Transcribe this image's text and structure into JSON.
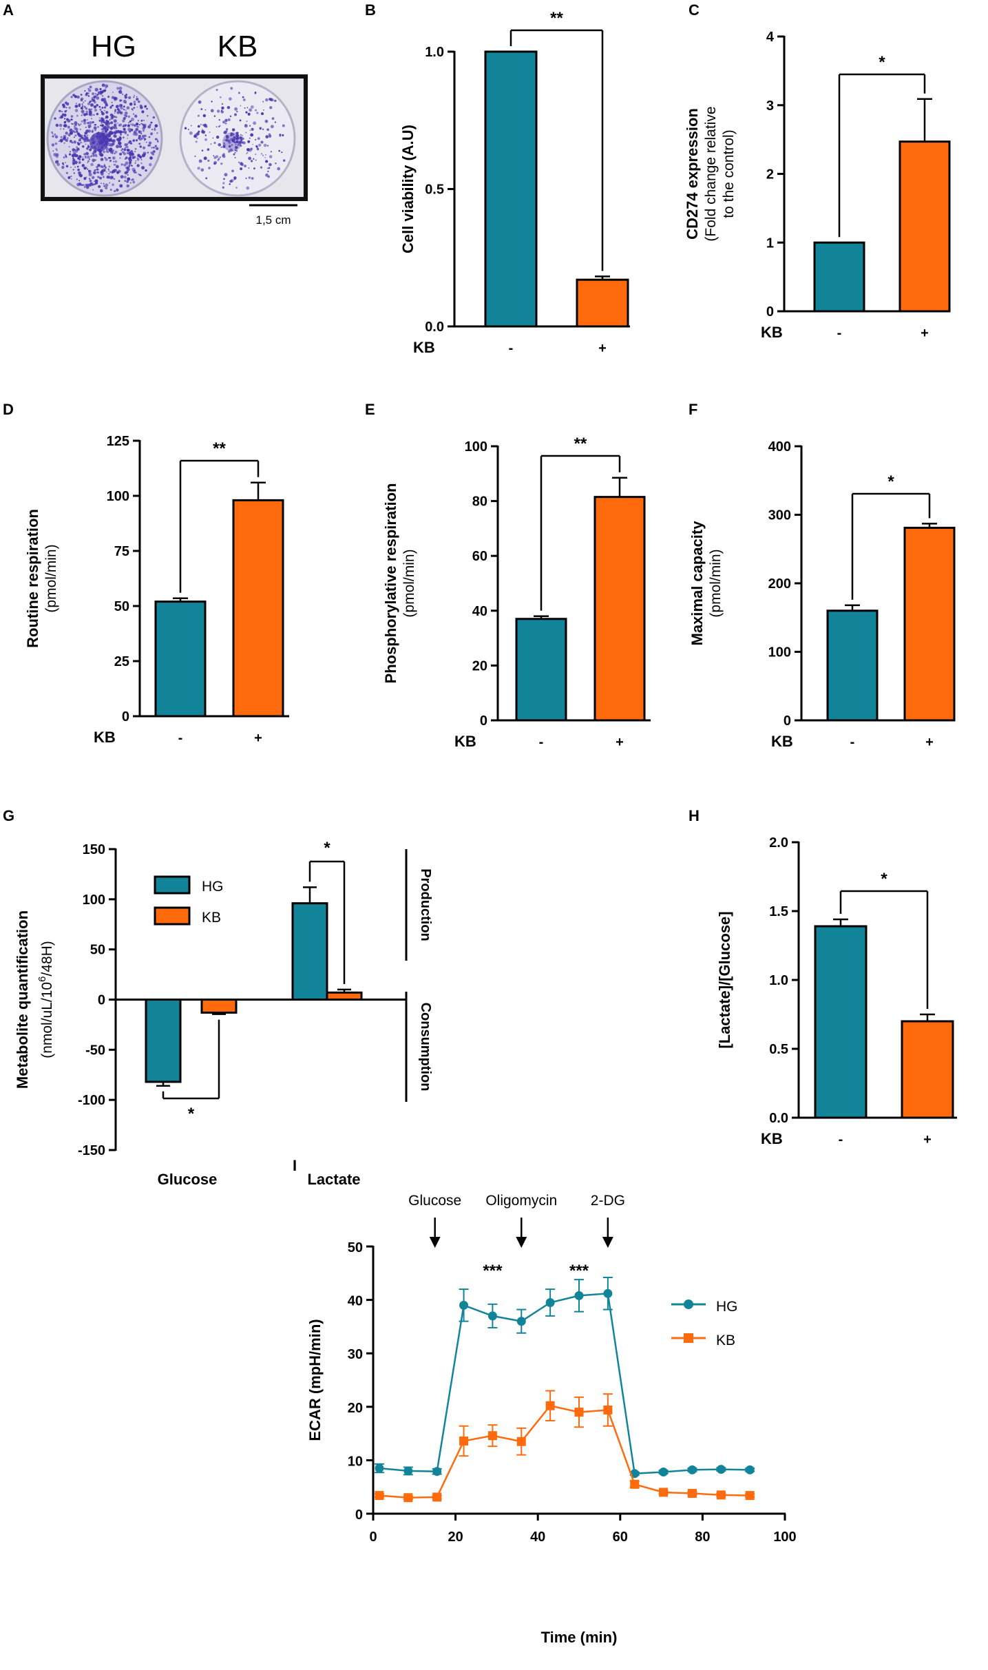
{
  "colors": {
    "hg": "#12849a",
    "kb": "#ff6a0d",
    "axis": "#000000",
    "stain": "#4a36b0"
  },
  "panel_labels": [
    "A",
    "B",
    "C",
    "D",
    "E",
    "F",
    "G",
    "H",
    "I"
  ],
  "panel_a": {
    "labels": [
      "HG",
      "KB"
    ],
    "scale_bar": "1,5 cm"
  },
  "chart_data": [
    {
      "panel": "B",
      "type": "bar",
      "title": "",
      "ylabel": "Cell viability (A.U)",
      "ysublabel": "",
      "xlabel": "KB",
      "categories": [
        "-",
        "+"
      ],
      "values": [
        1.0,
        0.17
      ],
      "errors": [
        0,
        0.012
      ],
      "ylim": [
        0,
        1.0
      ],
      "yticks": [
        "0.0",
        "0.5",
        "1.0"
      ],
      "ytick_values": [
        0,
        0.5,
        1.0
      ],
      "significance": "**"
    },
    {
      "panel": "C",
      "type": "bar",
      "ylabel": "CD274 expression",
      "ysublabel": "(Fold change relative",
      "ysublabel2": "to the control)",
      "xlabel": "KB",
      "categories": [
        "-",
        "+"
      ],
      "values": [
        1.0,
        2.47
      ],
      "errors": [
        0,
        0.62
      ],
      "ylim": [
        0,
        4
      ],
      "yticks": [
        "0",
        "1",
        "2",
        "3",
        "4"
      ],
      "ytick_values": [
        0,
        1,
        2,
        3,
        4
      ],
      "significance": "*"
    },
    {
      "panel": "D",
      "type": "bar",
      "ylabel": "Routine respiration",
      "ysublabel": "(pmol/min)",
      "xlabel": "KB",
      "categories": [
        "-",
        "+"
      ],
      "values": [
        52,
        98
      ],
      "errors": [
        1.5,
        8
      ],
      "ylim": [
        0,
        125
      ],
      "yticks": [
        "0",
        "25",
        "50",
        "75",
        "100",
        "125"
      ],
      "ytick_values": [
        0,
        25,
        50,
        75,
        100,
        125
      ],
      "significance": "**"
    },
    {
      "panel": "E",
      "type": "bar",
      "ylabel": "Phosphorylative respiration",
      "ysublabel": "(pmol/min)",
      "xlabel": "KB",
      "categories": [
        "-",
        "+"
      ],
      "values": [
        37,
        81.5
      ],
      "errors": [
        1,
        7
      ],
      "ylim": [
        0,
        100
      ],
      "yticks": [
        "0",
        "20",
        "40",
        "60",
        "80",
        "100"
      ],
      "ytick_values": [
        0,
        20,
        40,
        60,
        80,
        100
      ],
      "significance": "**"
    },
    {
      "panel": "F",
      "type": "bar",
      "ylabel": "Maximal capacity",
      "ysublabel": "(pmol/min)",
      "xlabel": "KB",
      "categories": [
        "-",
        "+"
      ],
      "values": [
        160,
        281
      ],
      "errors": [
        8,
        6
      ],
      "ylim": [
        0,
        400
      ],
      "yticks": [
        "0",
        "100",
        "200",
        "300",
        "400"
      ],
      "ytick_values": [
        0,
        100,
        200,
        300,
        400
      ],
      "significance": "*"
    },
    {
      "panel": "G",
      "type": "bar",
      "ylabel": "Metabolite quantification",
      "ysublabel": "(nmol/uL/10",
      "ysublabel_sup": "6",
      "ysublabel_end": "/48H)",
      "categories": [
        "Glucose",
        "Lactate"
      ],
      "series": [
        {
          "name": "HG",
          "values": [
            -82,
            96
          ],
          "errors": [
            4,
            16
          ]
        },
        {
          "name": "KB",
          "values": [
            -13,
            7
          ],
          "errors": [
            1.5,
            3
          ]
        }
      ],
      "ylim": [
        -150,
        150
      ],
      "yticks": [
        "-150",
        "-100",
        "-50",
        "0",
        "50",
        "100",
        "150"
      ],
      "ytick_values": [
        -150,
        -100,
        -50,
        0,
        50,
        100,
        150
      ],
      "brackets": [
        "Production",
        "Consumption"
      ],
      "significance": [
        "*",
        "*"
      ]
    },
    {
      "panel": "H",
      "type": "bar",
      "ylabel": "[Lactate]/[Glucose]",
      "ysublabel": "",
      "xlabel": "KB",
      "categories": [
        "-",
        "+"
      ],
      "values": [
        1.39,
        0.7
      ],
      "errors": [
        0.05,
        0.05
      ],
      "ylim": [
        0,
        2.0
      ],
      "yticks": [
        "0.0",
        "0.5",
        "1.0",
        "1.5",
        "2.0"
      ],
      "ytick_values": [
        0,
        0.5,
        1.0,
        1.5,
        2.0
      ],
      "significance": "*"
    },
    {
      "panel": "I",
      "type": "line",
      "xlabel": "Time (min)",
      "ylabel": "ECAR (mpH/min)",
      "xlim": [
        0,
        100
      ],
      "ylim": [
        0,
        50
      ],
      "xticks": [
        "0",
        "20",
        "40",
        "60",
        "80",
        "100"
      ],
      "xtick_values": [
        0,
        20,
        40,
        60,
        80,
        100
      ],
      "yticks": [
        "0",
        "10",
        "20",
        "30",
        "40",
        "50"
      ],
      "ytick_values": [
        0,
        10,
        20,
        30,
        40,
        50
      ],
      "x": [
        1.5,
        8.5,
        15.5,
        22,
        29,
        36,
        43,
        50,
        57,
        63.5,
        70.5,
        77.5,
        84.5,
        91.5
      ],
      "series": [
        {
          "name": "HG",
          "values": [
            8.5,
            8.0,
            7.9,
            39,
            37,
            36,
            39.5,
            40.8,
            41.2,
            7.5,
            7.8,
            8.2,
            8.3,
            8.2
          ],
          "errors": [
            0.8,
            0.7,
            0.5,
            3,
            2.2,
            2.2,
            2.5,
            3,
            3,
            0.3,
            0.3,
            0.3,
            0.3,
            0.3
          ]
        },
        {
          "name": "KB",
          "values": [
            3.4,
            3.0,
            3.1,
            13.6,
            14.6,
            13.5,
            20.2,
            19,
            19.4,
            5.5,
            4.0,
            3.8,
            3.5,
            3.4
          ],
          "errors": [
            0.3,
            0.3,
            0.3,
            2.8,
            2,
            2.5,
            2.8,
            2.8,
            3,
            0.6,
            0.3,
            0.3,
            0.3,
            0.3
          ]
        }
      ],
      "annotations": [
        {
          "text": "Glucose",
          "x": 15
        },
        {
          "text": "Oligomycin",
          "x": 36
        },
        {
          "text": "2-DG",
          "x": 57
        }
      ],
      "significance": [
        {
          "text": "***",
          "x": 29
        },
        {
          "text": "***",
          "x": 50
        }
      ]
    }
  ]
}
